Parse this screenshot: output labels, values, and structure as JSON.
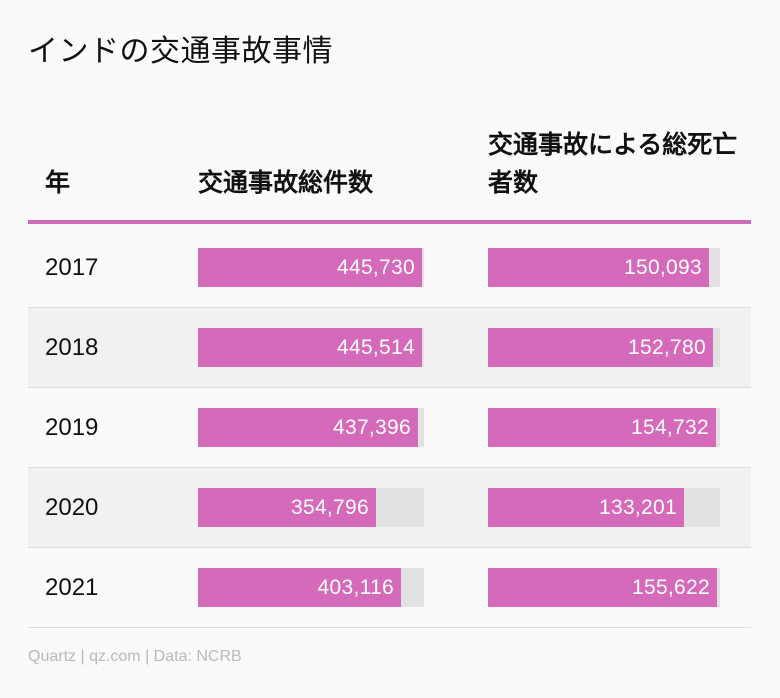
{
  "title": "インドの交通事故事情",
  "headers": {
    "year": "年",
    "accidents": "交通事故総件数",
    "deaths": "交通事故による総死亡者数"
  },
  "source": "Quartz | qz.com | Data: NCRB",
  "colors": {
    "bar": "#d46ab9",
    "track": "#e2e2e2",
    "header_rule": "#d06aba"
  },
  "chart_data": {
    "type": "table",
    "columns": [
      "年",
      "交通事故総件数",
      "交通事故による総死亡者数"
    ],
    "rows": [
      {
        "year": "2017",
        "accidents": 445730,
        "accidents_label": "445,730",
        "deaths": 150093,
        "deaths_label": "150,093"
      },
      {
        "year": "2018",
        "accidents": 445514,
        "accidents_label": "445,514",
        "deaths": 152780,
        "deaths_label": "152,780"
      },
      {
        "year": "2019",
        "accidents": 437396,
        "accidents_label": "437,396",
        "deaths": 154732,
        "deaths_label": "154,732"
      },
      {
        "year": "2020",
        "accidents": 354796,
        "accidents_label": "354,796",
        "deaths": 133201,
        "deaths_label": "133,201"
      },
      {
        "year": "2021",
        "accidents": 403116,
        "accidents_label": "403,116",
        "deaths": 155622,
        "deaths_label": "155,622"
      }
    ]
  }
}
